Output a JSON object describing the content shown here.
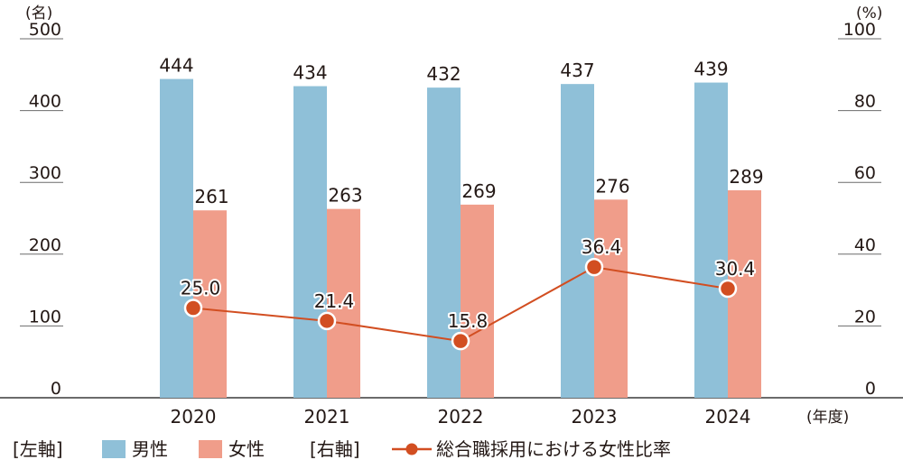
{
  "chart_data": {
    "type": "bar+line",
    "categories": [
      "2020",
      "2021",
      "2022",
      "2023",
      "2024"
    ],
    "x_unit": "(年度)",
    "left_axis": {
      "unit": "(名)",
      "ticks": [
        "0",
        "100",
        "200",
        "300",
        "400",
        "500"
      ],
      "range": [
        0,
        500
      ]
    },
    "right_axis": {
      "unit": "(%)",
      "ticks": [
        "0",
        "20",
        "40",
        "60",
        "80",
        "100"
      ],
      "range": [
        0,
        100
      ]
    },
    "series": [
      {
        "name": "男性",
        "axis": "left",
        "kind": "bar",
        "color": "#8fc0d8",
        "values": [
          444,
          434,
          432,
          437,
          439
        ]
      },
      {
        "name": "女性",
        "axis": "left",
        "kind": "bar",
        "color": "#f09d8a",
        "values": [
          261,
          263,
          269,
          276,
          289
        ]
      },
      {
        "name": "総合職採用における女性比率",
        "axis": "right",
        "kind": "line",
        "color": "#d24e21",
        "values": [
          25.0,
          21.4,
          15.8,
          36.4,
          30.4
        ],
        "labels": [
          "25.0",
          "21.4",
          "15.8",
          "36.4",
          "30.4"
        ]
      }
    ],
    "legend": {
      "left_axis_label": "[左軸]",
      "right_axis_label": "[右軸]",
      "placement": "bottom"
    }
  }
}
